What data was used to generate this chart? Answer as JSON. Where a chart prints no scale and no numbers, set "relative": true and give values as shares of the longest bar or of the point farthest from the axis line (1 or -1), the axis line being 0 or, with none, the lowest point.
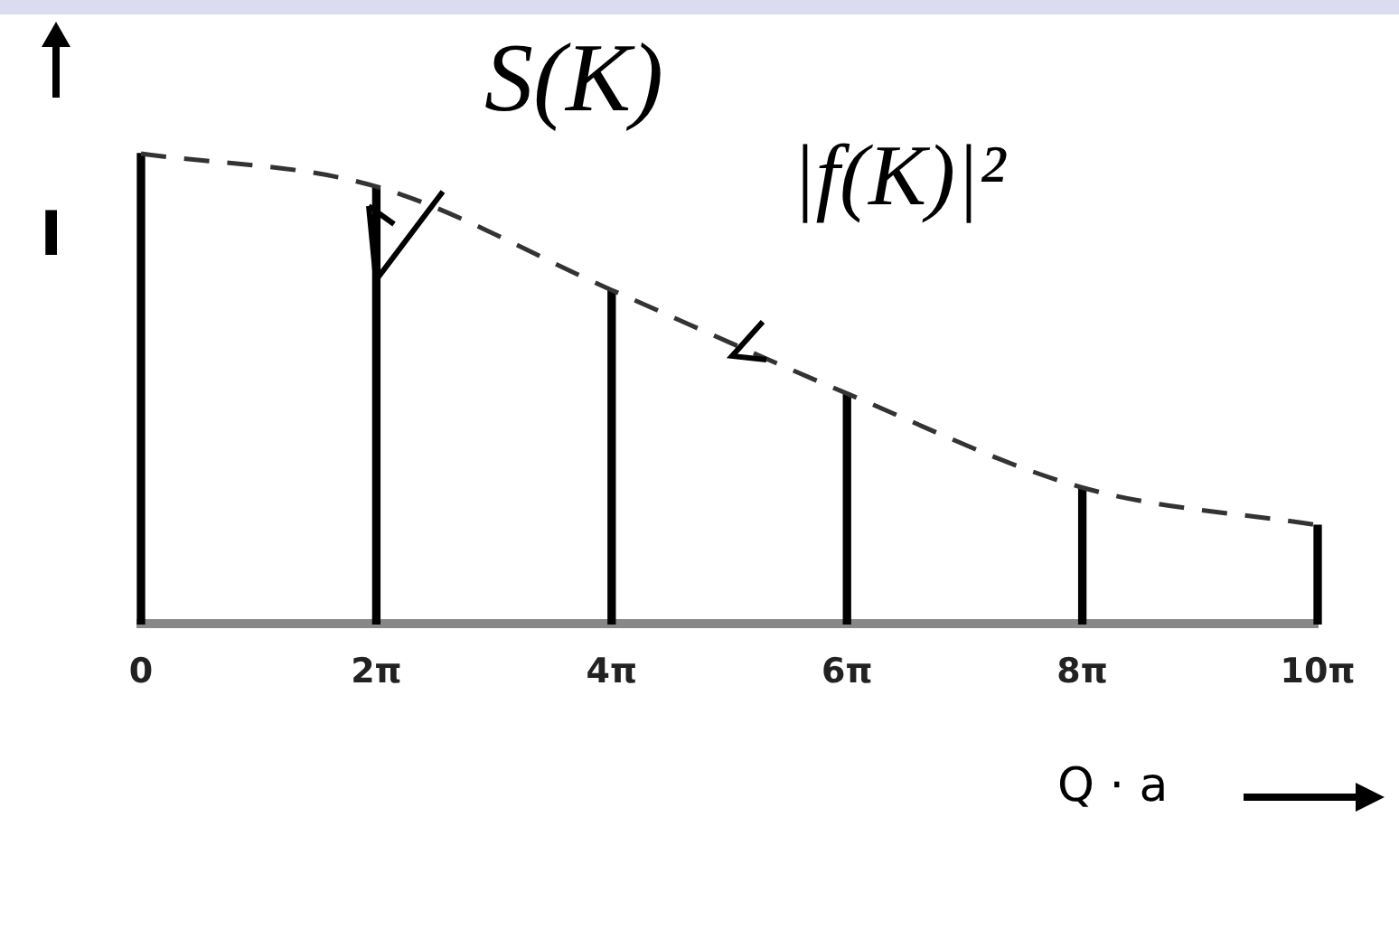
{
  "chart_data": {
    "type": "bar",
    "relative": true,
    "categories": [
      "0",
      "2π",
      "4π",
      "6π",
      "8π",
      "10π"
    ],
    "series": [
      {
        "color": "#000000",
        "values": [
          1,
          0.93,
          0.71,
          0.49,
          0.29,
          0.21
        ]
      },
      {
        "type": "line",
        "color": "#333333",
        "values": [
          1,
          0.93,
          0.71,
          0.49,
          0.29,
          0.21
        ]
      }
    ],
    "line_style": "dashed",
    "marker": "none",
    "grid": false,
    "legend": false,
    "xlabel": "Q · a",
    "ylabel": "I",
    "annotations": [
      "S(K)",
      "|f(K)|²"
    ]
  }
}
